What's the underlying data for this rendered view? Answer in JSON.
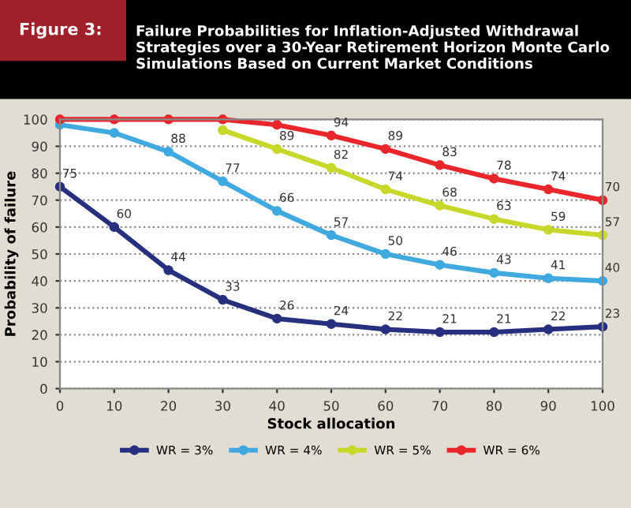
{
  "chart_data": {
    "type": "line",
    "title": "Failure Probabilities for Inflation-Adjusted Withdrawal Strategies over a 30-Year Retirement Horizon Monte Carlo Simulations Based on Current Market Conditions",
    "annotations": [
      "Figure 3:"
    ],
    "xlabel": "Stock allocation",
    "ylabel": "Probability of failure",
    "x": [
      0,
      10,
      20,
      30,
      40,
      50,
      60,
      70,
      80,
      90,
      100
    ],
    "series": [
      {
        "name": "WR = 3%",
        "color": "#27307f",
        "values": [
          75,
          60,
          44,
          33,
          26,
          24,
          22,
          21,
          21,
          22,
          23
        ],
        "value_labels": [
          "75",
          "60",
          "44",
          "33",
          "26",
          "24",
          "22",
          "21",
          "21",
          "22",
          "23"
        ]
      },
      {
        "name": "WR = 4%",
        "color": "#3fa9e0",
        "values": [
          98,
          95,
          88,
          77,
          66,
          57,
          50,
          46,
          43,
          41,
          40
        ],
        "value_labels": [
          null,
          null,
          "88",
          "77",
          "66",
          "57",
          "50",
          "46",
          "43",
          "41",
          "40"
        ]
      },
      {
        "name": "WR = 5%",
        "color": "#c8d82a",
        "values": [
          null,
          null,
          null,
          96,
          89,
          82,
          74,
          68,
          63,
          59,
          57
        ],
        "value_labels": [
          null,
          null,
          null,
          null,
          "89",
          "82",
          "74",
          "68",
          "63",
          "59",
          "57"
        ]
      },
      {
        "name": "WR = 6%",
        "color": "#e8262b",
        "values": [
          100,
          100,
          100,
          100,
          98,
          94,
          89,
          83,
          78,
          74,
          70
        ],
        "value_labels": [
          null,
          null,
          null,
          null,
          null,
          "94",
          "89",
          "83",
          "78",
          "74",
          "70"
        ]
      }
    ],
    "xlim": [
      0,
      100
    ],
    "xticks": [
      0,
      10,
      20,
      30,
      40,
      50,
      60,
      70,
      80,
      90,
      100
    ],
    "ylim": [
      0,
      100
    ],
    "yticks": [
      0,
      10,
      20,
      30,
      40,
      50,
      60,
      70,
      80,
      90,
      100
    ],
    "grid": "y",
    "legend": "bottom",
    "marker": "circle",
    "line_style": "solid"
  }
}
